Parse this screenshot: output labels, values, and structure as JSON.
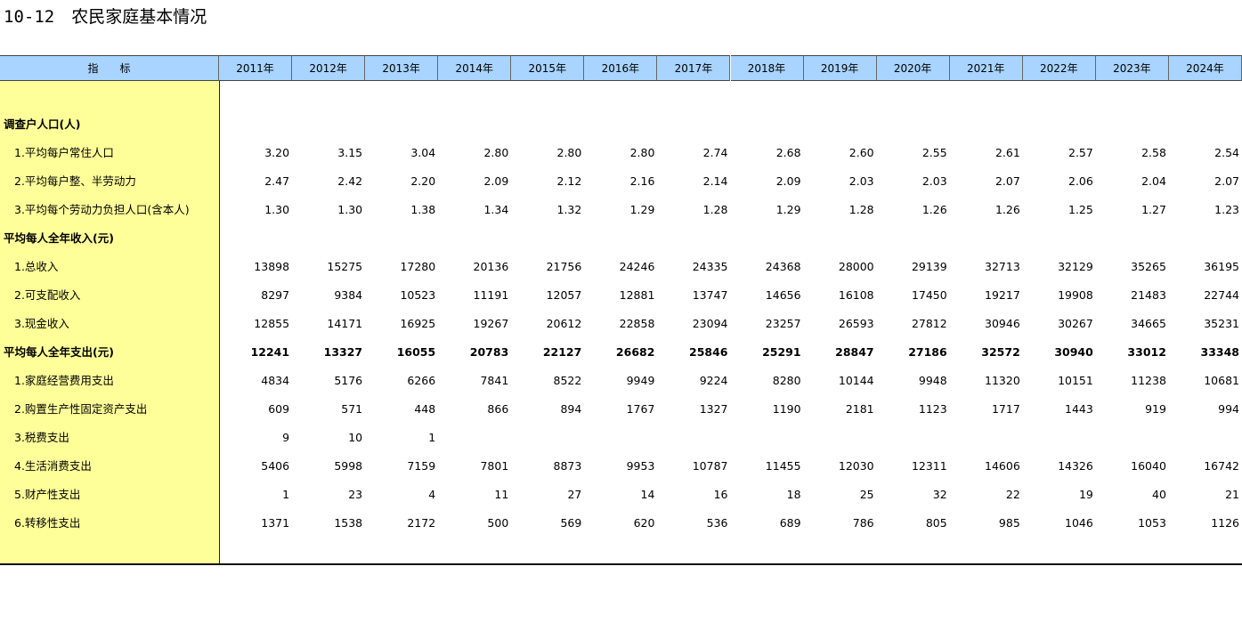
{
  "title": "10-12　农民家庭基本情况",
  "table": {
    "header": [
      "指　　标",
      "2011年",
      "2012年",
      "2013年",
      "2014年",
      "2015年",
      "2016年",
      "2017年",
      "2018年",
      "2019年",
      "2020年",
      "2021年",
      "2022年",
      "2023年",
      "2024年"
    ],
    "rows": [
      {
        "label": "调查户人口(人)",
        "bold": true,
        "values": null
      },
      {
        "label": "1.平均每户常住人口",
        "values": [
          "3.20",
          "3.15",
          "3.04",
          "2.80",
          "2.80",
          "2.80",
          "2.74",
          "2.68",
          "2.60",
          "2.55",
          "2.61",
          "2.57",
          "2.58",
          "2.54"
        ]
      },
      {
        "label": "2.平均每户整、半劳动力",
        "values": [
          "2.47",
          "2.42",
          "2.20",
          "2.09",
          "2.12",
          "2.16",
          "2.14",
          "2.09",
          "2.03",
          "2.03",
          "2.07",
          "2.06",
          "2.04",
          "2.07"
        ]
      },
      {
        "label": "3.平均每个劳动力负担人口(含本人)",
        "values": [
          "1.30",
          "1.30",
          "1.38",
          "1.34",
          "1.32",
          "1.29",
          "1.28",
          "1.29",
          "1.28",
          "1.26",
          "1.26",
          "1.25",
          "1.27",
          "1.23"
        ]
      },
      {
        "label": "平均每人全年收入(元)",
        "bold": true,
        "values": null
      },
      {
        "label": "1.总收入",
        "values": [
          "13898",
          "15275",
          "17280",
          "20136",
          "21756",
          "24246",
          "24335",
          "24368",
          "28000",
          "29139",
          "32713",
          "32129",
          "35265",
          "36195"
        ]
      },
      {
        "label": "2.可支配收入",
        "values": [
          "8297",
          "9384",
          "10523",
          "11191",
          "12057",
          "12881",
          "13747",
          "14656",
          "16108",
          "17450",
          "19217",
          "19908",
          "21483",
          "22744"
        ]
      },
      {
        "label": "3.现金收入",
        "values": [
          "12855",
          "14171",
          "16925",
          "19267",
          "20612",
          "22858",
          "23094",
          "23257",
          "26593",
          "27812",
          "30946",
          "30267",
          "34665",
          "35231"
        ]
      },
      {
        "label": "平均每人全年支出(元)",
        "bold": true,
        "values": [
          "12241",
          "13327",
          "16055",
          "20783",
          "22127",
          "26682",
          "25846",
          "25291",
          "28847",
          "27186",
          "32572",
          "30940",
          "33012",
          "33348"
        ]
      },
      {
        "label": "1.家庭经营费用支出",
        "values": [
          "4834",
          "5176",
          "6266",
          "7841",
          "8522",
          "9949",
          "9224",
          "8280",
          "10144",
          "9948",
          "11320",
          "10151",
          "11238",
          "10681"
        ]
      },
      {
        "label": "2.购置生产性固定资产支出",
        "values": [
          "609",
          "571",
          "448",
          "866",
          "894",
          "1767",
          "1327",
          "1190",
          "2181",
          "1123",
          "1717",
          "1443",
          "919",
          "994"
        ]
      },
      {
        "label": "3.税费支出",
        "values": [
          "9",
          "10",
          "1",
          null,
          null,
          null,
          null,
          null,
          null,
          null,
          null,
          null,
          null,
          null
        ]
      },
      {
        "label": "4.生活消费支出",
        "values": [
          "5406",
          "5998",
          "7159",
          "7801",
          "8873",
          "9953",
          "10787",
          "11455",
          "12030",
          "12311",
          "14606",
          "14326",
          "16040",
          "16742"
        ]
      },
      {
        "label": "5.财产性支出",
        "values": [
          "1",
          "23",
          "4",
          "11",
          "27",
          "14",
          "16",
          "18",
          "25",
          "32",
          "22",
          "19",
          "40",
          "21"
        ]
      },
      {
        "label": "6.转移性支出",
        "values": [
          "1371",
          "1538",
          "2172",
          "500",
          "569",
          "620",
          "536",
          "689",
          "786",
          "805",
          "985",
          "1046",
          "1053",
          "1126"
        ]
      }
    ]
  }
}
